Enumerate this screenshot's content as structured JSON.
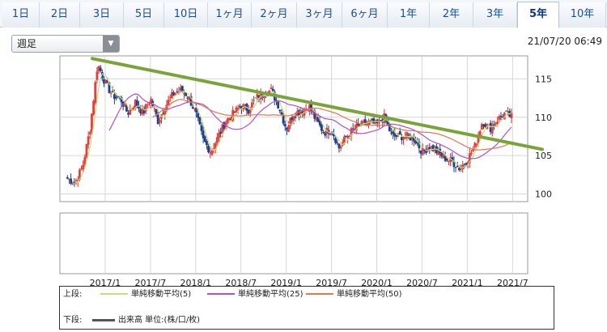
{
  "tabs": [
    {
      "label": "1日",
      "active": false
    },
    {
      "label": "2日",
      "active": false
    },
    {
      "label": "3日",
      "active": false
    },
    {
      "label": "5日",
      "active": false
    },
    {
      "label": "10日",
      "active": false
    },
    {
      "label": "1ヶ月",
      "active": false
    },
    {
      "label": "2ヶ月",
      "active": false
    },
    {
      "label": "3ヶ月",
      "active": false
    },
    {
      "label": "6ヶ月",
      "active": false
    },
    {
      "label": "1年",
      "active": false
    },
    {
      "label": "2年",
      "active": false
    },
    {
      "label": "3年",
      "active": false
    },
    {
      "label": "5年",
      "active": true
    },
    {
      "label": "10年",
      "active": false
    }
  ],
  "period_select": {
    "value": "週足"
  },
  "timestamp": "21/07/20 06:49",
  "legend": {
    "upper_label": "上段:",
    "lower_label": "下段:",
    "upper_items": [
      {
        "label": "単純移動平均(5)",
        "color": "#c8dc7a"
      },
      {
        "label": "単純移動平均(25)",
        "color": "#b050c8"
      },
      {
        "label": "単純移動平均(50)",
        "color": "#e07850"
      }
    ],
    "lower_item": {
      "label": "出来高 単位:(株/口/枚)",
      "color": "#555555"
    }
  },
  "chart_data": {
    "type": "candlestick",
    "x_tick_labels": [
      "2017/1",
      "2017/7",
      "2018/1",
      "2018/7",
      "2019/1",
      "2019/7",
      "2020/1",
      "2020/7",
      "2021/1",
      "2021/7"
    ],
    "y_tick_labels": [
      "115",
      "110",
      "105",
      "100"
    ],
    "ylim": [
      99,
      118
    ],
    "x_range": [
      "2016/7",
      "2021/9"
    ],
    "price_series": [
      [
        "2016/08",
        102.0
      ],
      [
        "2016/09",
        101.5
      ],
      [
        "2016/10",
        103.5
      ],
      [
        "2016/11",
        108.5
      ],
      [
        "2016/12",
        117.0
      ],
      [
        "2017/01",
        114.5
      ],
      [
        "2017/02",
        112.8
      ],
      [
        "2017/03",
        112.5
      ],
      [
        "2017/04",
        110.5
      ],
      [
        "2017/05",
        112.0
      ],
      [
        "2017/06",
        110.5
      ],
      [
        "2017/07",
        112.5
      ],
      [
        "2017/08",
        109.5
      ],
      [
        "2017/09",
        111.5
      ],
      [
        "2017/10",
        113.0
      ],
      [
        "2017/11",
        113.5
      ],
      [
        "2017/12",
        112.8
      ],
      [
        "2018/01",
        110.5
      ],
      [
        "2018/02",
        107.0
      ],
      [
        "2018/03",
        105.5
      ],
      [
        "2018/04",
        107.5
      ],
      [
        "2018/05",
        109.5
      ],
      [
        "2018/06",
        110.5
      ],
      [
        "2018/07",
        111.5
      ],
      [
        "2018/08",
        111.0
      ],
      [
        "2018/09",
        112.5
      ],
      [
        "2018/10",
        113.2
      ],
      [
        "2018/11",
        113.5
      ],
      [
        "2018/12",
        111.5
      ],
      [
        "2019/01",
        108.5
      ],
      [
        "2019/02",
        110.5
      ],
      [
        "2019/03",
        110.8
      ],
      [
        "2019/04",
        111.5
      ],
      [
        "2019/05",
        109.5
      ],
      [
        "2019/06",
        108.0
      ],
      [
        "2019/07",
        108.5
      ],
      [
        "2019/08",
        106.0
      ],
      [
        "2019/09",
        107.5
      ],
      [
        "2019/10",
        108.5
      ],
      [
        "2019/11",
        109.0
      ],
      [
        "2019/12",
        109.3
      ],
      [
        "2020/01",
        109.0
      ],
      [
        "2020/02",
        110.0
      ],
      [
        "2020/03",
        107.5
      ],
      [
        "2020/04",
        107.5
      ],
      [
        "2020/05",
        107.5
      ],
      [
        "2020/06",
        107.2
      ],
      [
        "2020/07",
        105.5
      ],
      [
        "2020/08",
        106.2
      ],
      [
        "2020/09",
        105.5
      ],
      [
        "2020/10",
        104.7
      ],
      [
        "2020/11",
        104.2
      ],
      [
        "2020/12",
        103.3
      ],
      [
        "2021/01",
        104.5
      ],
      [
        "2021/02",
        106.2
      ],
      [
        "2021/03",
        109.5
      ],
      [
        "2021/04",
        108.5
      ],
      [
        "2021/05",
        109.7
      ],
      [
        "2021/06",
        110.5
      ],
      [
        "2021/07",
        110.0
      ]
    ],
    "trendline": [
      [
        "2016/07",
        118.5
      ],
      [
        "2021/09",
        106.2
      ]
    ],
    "sma_periods": [
      5,
      25,
      50
    ],
    "grid": true,
    "lower_panel": "volume"
  }
}
